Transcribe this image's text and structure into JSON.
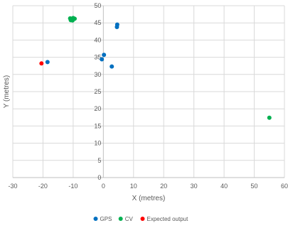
{
  "chart_data": {
    "type": "scatter",
    "title": "",
    "xlabel": "X (metres)",
    "ylabel": "Y (metres)",
    "xlim": [
      -30,
      60
    ],
    "ylim": [
      0,
      50
    ],
    "x_ticks": [
      -30,
      -20,
      -10,
      0,
      10,
      20,
      30,
      40,
      50,
      60
    ],
    "y_ticks": [
      0,
      5,
      10,
      15,
      20,
      25,
      30,
      35,
      40,
      45,
      50
    ],
    "grid": true,
    "legend_position": "bottom",
    "series": [
      {
        "name": "GPS",
        "color": "#0070c0",
        "points": [
          {
            "x": -18.5,
            "y": 33.6
          },
          {
            "x": 0.2,
            "y": 35.7
          },
          {
            "x": -0.5,
            "y": 34.4
          },
          {
            "x": 2.8,
            "y": 32.3
          },
          {
            "x": 4.5,
            "y": 43.8
          },
          {
            "x": 4.6,
            "y": 44.5
          }
        ]
      },
      {
        "name": "CV",
        "color": "#00b050",
        "points": [
          {
            "x": -11.0,
            "y": 46.3
          },
          {
            "x": -10.5,
            "y": 46.1
          },
          {
            "x": -10.0,
            "y": 46.4
          },
          {
            "x": -9.5,
            "y": 46.2
          },
          {
            "x": -10.8,
            "y": 45.8
          },
          {
            "x": -10.2,
            "y": 45.7
          },
          {
            "x": 55.0,
            "y": 17.4
          }
        ]
      },
      {
        "name": "Expected output",
        "color": "#ff0000",
        "points": [
          {
            "x": -20.5,
            "y": 33.2
          }
        ]
      }
    ]
  }
}
